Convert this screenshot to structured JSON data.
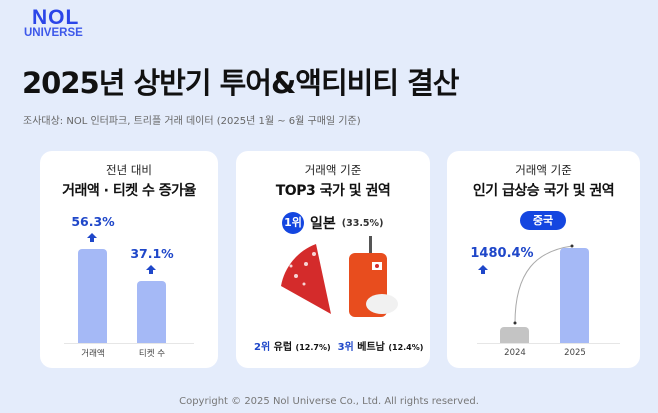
{
  "logo": {
    "line1": "NOL",
    "line2": "UNIVERSE"
  },
  "title": "2025년 상반기 투어&액티비티 결산",
  "subtitle": "조사대상: NOL 인터파크, 트리플 거래 데이터 (2025년 1월 ~ 6월 구매일 기준)",
  "card1": {
    "caption": "전년 대비",
    "heading": "거래액 · 티켓 수 증가율"
  },
  "card2": {
    "caption": "거래액 기준",
    "heading": "TOP3 국가 및 권역",
    "rank1": {
      "badge": "1위",
      "name": "일본",
      "share": "(33.5%)"
    },
    "rank2": {
      "rank": "2위",
      "name": "유럽",
      "share": "(12.7%)"
    },
    "rank3": {
      "rank": "3위",
      "name": "베트남",
      "share": "(12.4%)"
    }
  },
  "card3": {
    "caption": "거래액 기준",
    "heading": "인기 급상승 국가 및 권역",
    "badge": "중국",
    "growth": "1480.4%"
  },
  "footer": "Copyright © 2025 Nol Universe Co., Ltd. All rights reserved.",
  "colors": {
    "bar": "#a5b9f6",
    "bar_prev": "#c4c4c4",
    "accent": "#1446e0",
    "value_text": "#1f47c9",
    "background": "#e4ecfb"
  },
  "chart_data": [
    {
      "type": "bar",
      "categories": [
        "거래액",
        "티켓 수"
      ],
      "values": [
        56.3,
        37.1
      ],
      "labels": [
        "56.3%",
        "37.1%"
      ],
      "unit": "%"
    },
    {
      "type": "bar",
      "categories": [
        "2024",
        "2025"
      ],
      "values": [
        1,
        15.804
      ],
      "labels": [
        "",
        "1480.4%"
      ],
      "note_label": "1480.4%"
    }
  ]
}
